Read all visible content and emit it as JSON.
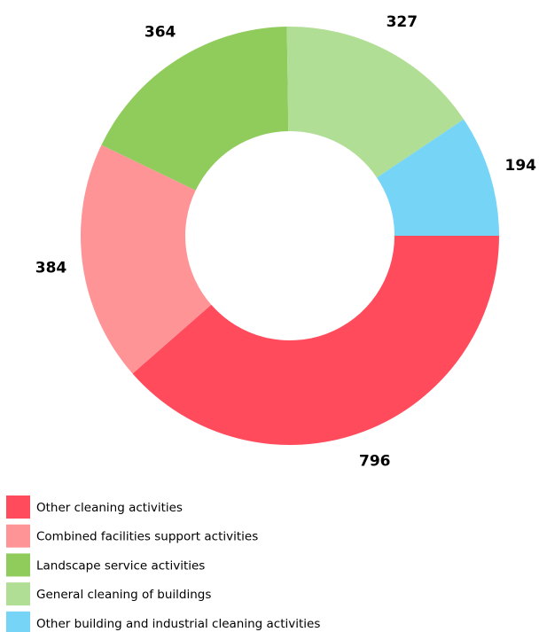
{
  "chart_data": {
    "type": "donut",
    "categories": [
      "Other cleaning activities",
      "Combined facilities support activities",
      "Landscape service activities",
      "General cleaning of buildings",
      "Other building and industrial cleaning activities"
    ],
    "values": [
      796,
      384,
      364,
      327,
      194
    ],
    "colors": [
      "#ff4b5c",
      "#ff9497",
      "#8fcc5c",
      "#b1de95",
      "#76d4f7"
    ],
    "legend": "bottom-left"
  }
}
